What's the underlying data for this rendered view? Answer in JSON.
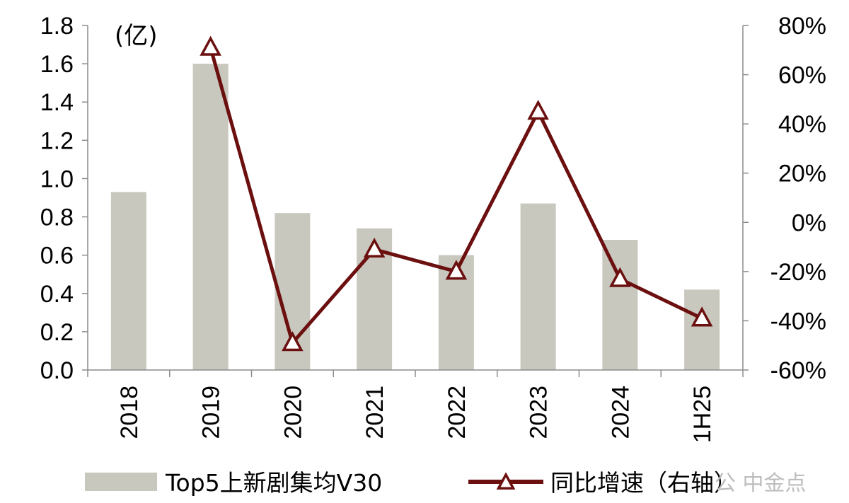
{
  "chart_data": {
    "type": "bar+line",
    "categories": [
      "2018",
      "2019",
      "2020",
      "2021",
      "2022",
      "2023",
      "2024",
      "1H25"
    ],
    "left_axis": {
      "unit_label": "(亿)",
      "ylim": [
        0,
        1.8
      ],
      "ticks": [
        "0.0",
        "0.2",
        "0.4",
        "0.6",
        "0.8",
        "1.0",
        "1.2",
        "1.4",
        "1.6",
        "1.8"
      ]
    },
    "right_axis": {
      "ylim": [
        -60,
        80
      ],
      "ticks": [
        "-60%",
        "-40%",
        "-20%",
        "0%",
        "20%",
        "40%",
        "60%",
        "80%"
      ]
    },
    "series": [
      {
        "name": "Top5上新剧集均V30",
        "type": "bar",
        "axis": "left",
        "color": "#c9c8bf",
        "values": [
          0.93,
          1.6,
          0.82,
          0.74,
          0.6,
          0.87,
          0.68,
          0.42
        ]
      },
      {
        "name": "同比增速（右轴）",
        "type": "line",
        "axis": "right",
        "color": "#6b0f0f",
        "marker": "triangle",
        "values": [
          null,
          71,
          -49,
          -11,
          -20,
          45,
          -23,
          -39
        ]
      }
    ],
    "grid": false,
    "legend_position": "bottom"
  },
  "watermark": {
    "text": "公 中金点"
  }
}
